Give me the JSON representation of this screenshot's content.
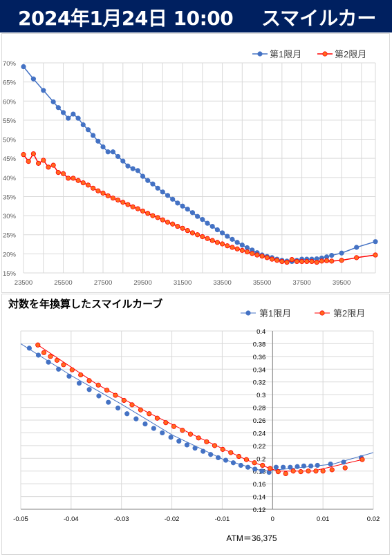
{
  "header": {
    "datetime": "2024年1月24日 10:00",
    "title": "スマイルカーブ",
    "background": "#002060"
  },
  "colors": {
    "series1": "#4472C4",
    "series2": "#FF0000",
    "series2_fill": "#FF6A1F",
    "grid": "#D9D9D9"
  },
  "chart_data": [
    {
      "type": "line",
      "title": "",
      "xlabel": "",
      "ylabel": "",
      "xlim": [
        23500,
        41200
      ],
      "ylim": [
        15,
        70
      ],
      "x_ticks": [
        "23500",
        "25500",
        "27500",
        "29500",
        "31500",
        "33500",
        "35500",
        "37500",
        "39500"
      ],
      "y_ticks": [
        "15%",
        "20%",
        "25%",
        "30%",
        "35%",
        "40%",
        "45%",
        "50%",
        "55%",
        "60%",
        "65%",
        "70%"
      ],
      "grid": "horizontal-and-vertical",
      "legend": "top-right",
      "series": [
        {
          "name": "第1限月",
          "points": [
            [
              23500,
              69
            ],
            [
              24000,
              65.8
            ],
            [
              24500,
              62.8
            ],
            [
              25000,
              59.8
            ],
            [
              25250,
              58.3
            ],
            [
              25500,
              57
            ],
            [
              25750,
              55.5
            ],
            [
              26000,
              56.6
            ],
            [
              26250,
              55.5
            ],
            [
              26500,
              53.8
            ],
            [
              26750,
              52.5
            ],
            [
              27000,
              51
            ],
            [
              27250,
              49.5
            ],
            [
              27500,
              48
            ],
            [
              27750,
              46.7
            ],
            [
              28000,
              46.7
            ],
            [
              28250,
              45.5
            ],
            [
              28500,
              44.3
            ],
            [
              28750,
              43
            ],
            [
              29000,
              42.3
            ],
            [
              29250,
              41.8
            ],
            [
              29500,
              40.3
            ],
            [
              29750,
              39.2
            ],
            [
              30000,
              38.3
            ],
            [
              30250,
              37.2
            ],
            [
              30500,
              36.2
            ],
            [
              30750,
              35.3
            ],
            [
              31000,
              34.3
            ],
            [
              31250,
              33.3
            ],
            [
              31500,
              32.5
            ],
            [
              31750,
              31.7
            ],
            [
              32000,
              30.8
            ],
            [
              32250,
              29.8
            ],
            [
              32500,
              29
            ],
            [
              32750,
              28
            ],
            [
              33000,
              27.2
            ],
            [
              33250,
              26.3
            ],
            [
              33500,
              25.5
            ],
            [
              33750,
              24.6
            ],
            [
              34000,
              23.8
            ],
            [
              34250,
              23
            ],
            [
              34500,
              22.3
            ],
            [
              34750,
              21.6
            ],
            [
              35000,
              21
            ],
            [
              35250,
              20.3
            ],
            [
              35500,
              19.7
            ],
            [
              35750,
              19.3
            ],
            [
              36000,
              19
            ],
            [
              36250,
              18.6
            ],
            [
              36500,
              18.3
            ],
            [
              36750,
              18.1
            ],
            [
              37000,
              18
            ],
            [
              37250,
              18.3
            ],
            [
              37500,
              18.6
            ],
            [
              37750,
              18.6
            ],
            [
              38000,
              18.6
            ],
            [
              38250,
              18.7
            ],
            [
              38500,
              18.9
            ],
            [
              38750,
              19.2
            ],
            [
              39000,
              19.6
            ],
            [
              39500,
              20.2
            ],
            [
              40250,
              21.7
            ],
            [
              41200,
              23.2
            ]
          ]
        },
        {
          "name": "第2限月",
          "points": [
            [
              23500,
              46
            ],
            [
              23750,
              44.2
            ],
            [
              24000,
              46.2
            ],
            [
              24250,
              43.7
            ],
            [
              24500,
              44.5
            ],
            [
              24750,
              42.7
            ],
            [
              25000,
              43.2
            ],
            [
              25250,
              41.3
            ],
            [
              25500,
              41
            ],
            [
              25750,
              39.8
            ],
            [
              26000,
              39.8
            ],
            [
              26250,
              39.2
            ],
            [
              26500,
              38.6
            ],
            [
              26750,
              38
            ],
            [
              27000,
              37.2
            ],
            [
              27250,
              36.5
            ],
            [
              27500,
              35.9
            ],
            [
              27750,
              35.2
            ],
            [
              28000,
              34.6
            ],
            [
              28250,
              34.1
            ],
            [
              28500,
              33.5
            ],
            [
              28750,
              32.9
            ],
            [
              29000,
              32.3
            ],
            [
              29250,
              31.8
            ],
            [
              29500,
              31.2
            ],
            [
              29750,
              30.6
            ],
            [
              30000,
              30
            ],
            [
              30250,
              29.5
            ],
            [
              30500,
              28.9
            ],
            [
              30750,
              28.3
            ],
            [
              31000,
              27.8
            ],
            [
              31250,
              27.2
            ],
            [
              31500,
              26.7
            ],
            [
              31750,
              26.1
            ],
            [
              32000,
              25.5
            ],
            [
              32250,
              25
            ],
            [
              32500,
              24.5
            ],
            [
              32750,
              24
            ],
            [
              33000,
              23.5
            ],
            [
              33250,
              23
            ],
            [
              33500,
              22.6
            ],
            [
              33750,
              22.1
            ],
            [
              34000,
              21.7
            ],
            [
              34250,
              21.3
            ],
            [
              34500,
              20.9
            ],
            [
              34750,
              20.5
            ],
            [
              35000,
              20.1
            ],
            [
              35250,
              19.7
            ],
            [
              35500,
              19.4
            ],
            [
              35750,
              19
            ],
            [
              36000,
              18.6
            ],
            [
              36250,
              18.3
            ],
            [
              36500,
              18
            ],
            [
              36750,
              17.8
            ],
            [
              37000,
              18.5
            ],
            [
              37250,
              18
            ],
            [
              37500,
              18
            ],
            [
              37750,
              18
            ],
            [
              38000,
              18
            ],
            [
              38250,
              17.8
            ],
            [
              38500,
              18.1
            ],
            [
              38750,
              18.2
            ],
            [
              39000,
              18.1
            ],
            [
              39500,
              18.3
            ],
            [
              40250,
              19
            ],
            [
              41200,
              19.7
            ]
          ]
        }
      ]
    },
    {
      "type": "scatter",
      "title": "対数を年換算したスマイルカーブ",
      "xlabel": "",
      "ylabel": "",
      "note": "ATM＝36,375",
      "xlim": [
        -0.05,
        0.02
      ],
      "ylim": [
        0.12,
        0.4
      ],
      "x_ticks": [
        "-0.05",
        "-0.04",
        "-0.03",
        "-0.02",
        "-0.01",
        "0",
        "0.01",
        "0.02"
      ],
      "y_ticks": [
        "0.12",
        "0.14",
        "0.16",
        "0.18",
        "0.2",
        "0.22",
        "0.24",
        "0.26",
        "0.28",
        "0.3",
        "0.32",
        "0.34",
        "0.36",
        "0.38",
        "0.4"
      ],
      "grid": "horizontal-and-vertical",
      "legend": "top-right",
      "series": [
        {
          "name": "第1限月",
          "points": [
            [
              -0.0483,
              0.373
            ],
            [
              -0.0465,
              0.362
            ],
            [
              -0.0445,
              0.351
            ],
            [
              -0.0425,
              0.34
            ],
            [
              -0.0404,
              0.329
            ],
            [
              -0.0384,
              0.318
            ],
            [
              -0.0364,
              0.308
            ],
            [
              -0.0345,
              0.298
            ],
            [
              -0.0326,
              0.288
            ],
            [
              -0.0307,
              0.279
            ],
            [
              -0.0289,
              0.27
            ],
            [
              -0.0271,
              0.262
            ],
            [
              -0.0253,
              0.254
            ],
            [
              -0.0236,
              0.247
            ],
            [
              -0.0219,
              0.24
            ],
            [
              -0.0202,
              0.233
            ],
            [
              -0.0186,
              0.227
            ],
            [
              -0.017,
              0.221
            ],
            [
              -0.0154,
              0.216
            ],
            [
              -0.0138,
              0.211
            ],
            [
              -0.0123,
              0.206
            ],
            [
              -0.0108,
              0.201
            ],
            [
              -0.0093,
              0.197
            ],
            [
              -0.0078,
              0.193
            ],
            [
              -0.0063,
              0.189
            ],
            [
              -0.0049,
              0.186
            ],
            [
              -0.0035,
              0.183
            ],
            [
              -0.0021,
              0.18
            ],
            [
              -0.0007,
              0.178
            ],
            [
              0.0007,
              0.186
            ],
            [
              0.0021,
              0.186
            ],
            [
              0.0035,
              0.186
            ],
            [
              0.0049,
              0.187
            ],
            [
              0.0062,
              0.188
            ],
            [
              0.0076,
              0.188
            ],
            [
              0.0089,
              0.189
            ],
            [
              0.0115,
              0.191
            ],
            [
              0.0141,
              0.194
            ],
            [
              0.0176,
              0.201
            ]
          ]
        },
        {
          "name": "第2限月",
          "points": [
            [
              -0.0466,
              0.378
            ],
            [
              -0.0454,
              0.366
            ],
            [
              -0.0441,
              0.36
            ],
            [
              -0.0428,
              0.354
            ],
            [
              -0.0415,
              0.347
            ],
            [
              -0.0398,
              0.339
            ],
            [
              -0.0381,
              0.331
            ],
            [
              -0.0364,
              0.322
            ],
            [
              -0.0346,
              0.315
            ],
            [
              -0.0329,
              0.307
            ],
            [
              -0.0312,
              0.299
            ],
            [
              -0.0295,
              0.291
            ],
            [
              -0.0279,
              0.284
            ],
            [
              -0.0262,
              0.276
            ],
            [
              -0.0245,
              0.27
            ],
            [
              -0.0229,
              0.263
            ],
            [
              -0.0212,
              0.256
            ],
            [
              -0.0196,
              0.25
            ],
            [
              -0.0179,
              0.244
            ],
            [
              -0.0163,
              0.238
            ],
            [
              -0.0147,
              0.232
            ],
            [
              -0.0131,
              0.226
            ],
            [
              -0.0115,
              0.22
            ],
            [
              -0.0099,
              0.214
            ],
            [
              -0.0083,
              0.209
            ],
            [
              -0.0067,
              0.203
            ],
            [
              -0.0052,
              0.198
            ],
            [
              -0.0036,
              0.193
            ],
            [
              -0.002,
              0.189
            ],
            [
              -0.0005,
              0.184
            ],
            [
              0.0011,
              0.179
            ],
            [
              0.0026,
              0.176
            ],
            [
              0.0041,
              0.18
            ],
            [
              0.0056,
              0.179
            ],
            [
              0.0071,
              0.18
            ],
            [
              0.0086,
              0.18
            ],
            [
              0.01,
              0.18
            ],
            [
              0.0118,
              0.182
            ],
            [
              0.0144,
              0.185
            ],
            [
              0.0178,
              0.198
            ]
          ]
        }
      ]
    }
  ]
}
